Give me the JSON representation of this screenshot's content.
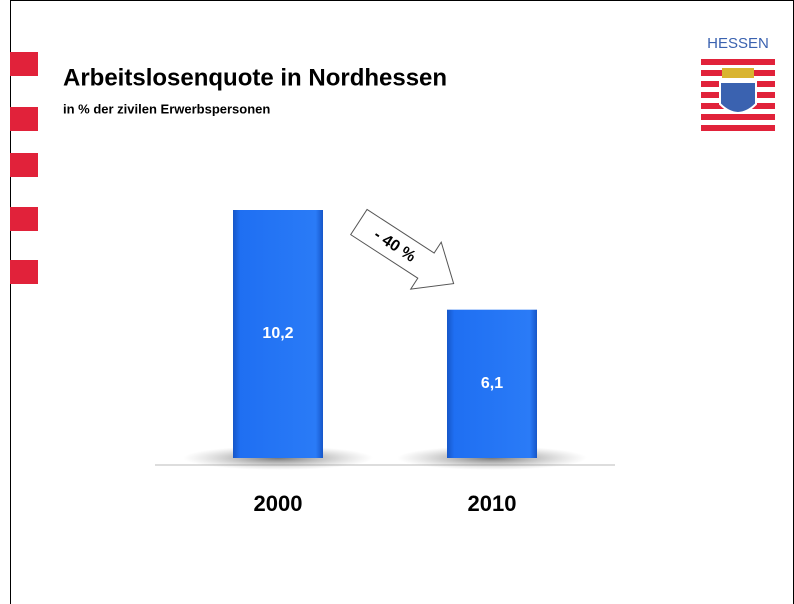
{
  "chart_data": {
    "type": "bar",
    "title": "Arbeitslosenquote in Nordhessen",
    "subtitle": "in % der zivilen Erwerbspersonen",
    "categories": [
      "2000",
      "2010"
    ],
    "values": [
      10.2,
      6.1
    ],
    "value_labels": [
      "10,2",
      "6,1"
    ],
    "color": "#1f6ff2",
    "annotation": "- 40 %",
    "logo_text": "HESSEN"
  }
}
